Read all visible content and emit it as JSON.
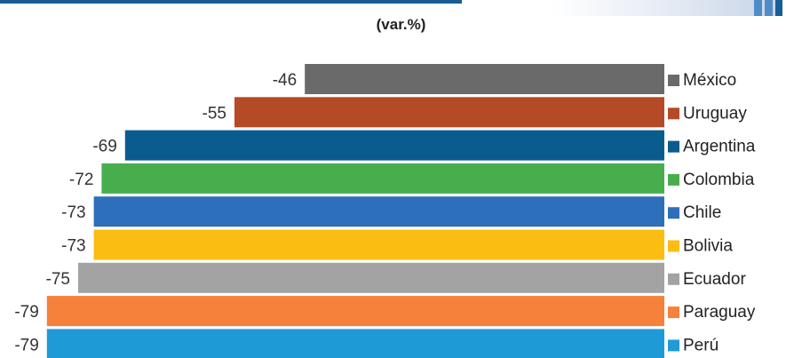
{
  "subtitle": "(var.%)",
  "colors": {
    "top_line": "#1a5c96",
    "corner_dark": "#1a5c96",
    "corner_light": "#4f8bc9"
  },
  "chart_data": {
    "type": "bar",
    "orientation": "horizontal",
    "title": "",
    "subtitle": "(var.%)",
    "categories": [
      "México",
      "Uruguay",
      "Argentina",
      "Colombia",
      "Chile",
      "Bolivia",
      "Ecuador",
      "Paraguay",
      "Perú"
    ],
    "values": [
      -46,
      -55,
      -69,
      -72,
      -73,
      -73,
      -75,
      -79,
      -79
    ],
    "colors": [
      "#6a6a6a",
      "#b54a26",
      "#0b5c8e",
      "#48ae4d",
      "#2d6fba",
      "#fbbd12",
      "#a3a3a3",
      "#f5813a",
      "#1e9bd7"
    ],
    "xlim": [
      -80,
      0
    ],
    "grid": false,
    "legend": "right",
    "data_labels": true
  }
}
